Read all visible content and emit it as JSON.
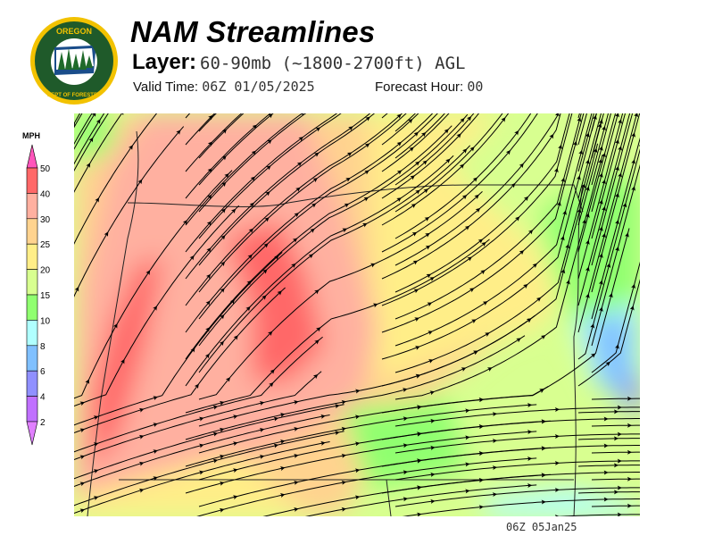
{
  "header": {
    "title": "NAM Streamlines",
    "layer_label": "Layer:",
    "layer_value": "60-90mb (~1800-2700ft) AGL",
    "valid_label": "Valid Time:",
    "valid_value": "06Z 01/05/2025",
    "forecast_label": "Forecast Hour:",
    "forecast_value": "00"
  },
  "logo": {
    "text_top": "OREGON",
    "text_bottom": "DEPARTMENT OF FORESTRY"
  },
  "legend": {
    "unit": "MPH",
    "ticks": [
      "50",
      "40",
      "30",
      "25",
      "20",
      "15",
      "10",
      "8",
      "6",
      "4",
      "2"
    ],
    "colors": [
      "#ff6868",
      "#ffb0a0",
      "#ffd38f",
      "#ffee88",
      "#d8ff90",
      "#90ff70",
      "#b0ffff",
      "#80c0ff",
      "#9090ff",
      "#c070ff"
    ],
    "over_color": "#ff55bb",
    "under_color": "#e080ff"
  },
  "footer": {
    "timestamp": "06Z 05Jan25"
  }
}
